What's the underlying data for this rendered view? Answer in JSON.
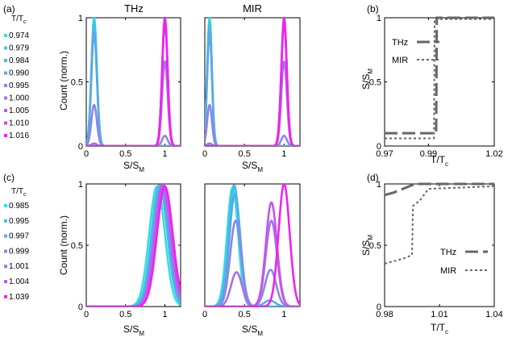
{
  "panel_labels": {
    "a": "(a)",
    "b": "(b)",
    "c": "(c)",
    "d": "(d)"
  },
  "common": {
    "ylabel_count": "Count (norm.)",
    "xlabel_main": "S/S",
    "xlabel_sub": "M",
    "ylabel_S_main": "S/S",
    "ylabel_S_sub": "M",
    "tt_main": "T/T",
    "tt_sub": "c"
  },
  "chart_data": [
    {
      "id": "a",
      "type": "line",
      "title": "THz",
      "xlabel": "S/S_M",
      "ylabel": "Count (norm.)",
      "xlim": [
        0,
        1.2
      ],
      "ylim": [
        0,
        1
      ],
      "xticks": [
        "0",
        "0.5",
        "1"
      ],
      "yticks": [
        "0",
        "0.5",
        "1"
      ],
      "legend_title": "T/T_c",
      "series": [
        {
          "name": "0.974",
          "color": "#33dfe0",
          "peaks": [
            {
              "mu": 0.1,
              "sigma": 0.035,
              "amp": 1.0
            }
          ]
        },
        {
          "name": "0.979",
          "color": "#3dcde3",
          "peaks": [
            {
              "mu": 0.1,
              "sigma": 0.035,
              "amp": 0.98
            }
          ]
        },
        {
          "name": "0.984",
          "color": "#47bbe5",
          "peaks": [
            {
              "mu": 0.1,
              "sigma": 0.035,
              "amp": 0.95
            }
          ]
        },
        {
          "name": "0.990",
          "color": "#5aa8e8",
          "peaks": [
            {
              "mu": 0.1,
              "sigma": 0.035,
              "amp": 0.88
            }
          ]
        },
        {
          "name": "0.995",
          "color": "#8a86ea",
          "peaks": [
            {
              "mu": 0.1,
              "sigma": 0.035,
              "amp": 0.32
            },
            {
              "mu": 1.0,
              "sigma": 0.035,
              "amp": 0.08
            }
          ]
        },
        {
          "name": "1.000",
          "color": "#a870ec",
          "peaks": [
            {
              "mu": 0.1,
              "sigma": 0.035,
              "amp": 0.02
            },
            {
              "mu": 1.0,
              "sigma": 0.035,
              "amp": 0.66
            }
          ]
        },
        {
          "name": "1.005",
          "color": "#c455ee",
          "peaks": [
            {
              "mu": 1.0,
              "sigma": 0.035,
              "amp": 0.96
            }
          ]
        },
        {
          "name": "1.010",
          "color": "#db3cf0",
          "peaks": [
            {
              "mu": 1.0,
              "sigma": 0.035,
              "amp": 0.98
            }
          ]
        },
        {
          "name": "1.016",
          "color": "#ef22f0",
          "peaks": [
            {
              "mu": 1.0,
              "sigma": 0.035,
              "amp": 1.0
            }
          ]
        }
      ]
    },
    {
      "id": "a-mir",
      "type": "line",
      "title": "MIR",
      "xlabel": "S/S_M",
      "xlim": [
        0,
        1.2
      ],
      "ylim": [
        0,
        1
      ],
      "xticks": [
        "0",
        "0.5",
        "1"
      ],
      "series": [
        {
          "name": "0.974",
          "color": "#33dfe0",
          "peaks": [
            {
              "mu": 0.06,
              "sigma": 0.03,
              "amp": 1.0
            }
          ]
        },
        {
          "name": "0.979",
          "color": "#3dcde3",
          "peaks": [
            {
              "mu": 0.06,
              "sigma": 0.03,
              "amp": 0.98
            }
          ]
        },
        {
          "name": "0.984",
          "color": "#47bbe5",
          "peaks": [
            {
              "mu": 0.06,
              "sigma": 0.03,
              "amp": 0.95
            }
          ]
        },
        {
          "name": "0.990",
          "color": "#5aa8e8",
          "peaks": [
            {
              "mu": 0.06,
              "sigma": 0.03,
              "amp": 0.88
            }
          ]
        },
        {
          "name": "0.995",
          "color": "#8a86ea",
          "peaks": [
            {
              "mu": 0.06,
              "sigma": 0.03,
              "amp": 0.32
            },
            {
              "mu": 1.0,
              "sigma": 0.035,
              "amp": 0.08
            }
          ]
        },
        {
          "name": "1.000",
          "color": "#a870ec",
          "peaks": [
            {
              "mu": 0.06,
              "sigma": 0.03,
              "amp": 0.02
            },
            {
              "mu": 1.0,
              "sigma": 0.035,
              "amp": 0.66
            }
          ]
        },
        {
          "name": "1.005",
          "color": "#c455ee",
          "peaks": [
            {
              "mu": 1.0,
              "sigma": 0.035,
              "amp": 0.96
            }
          ]
        },
        {
          "name": "1.010",
          "color": "#db3cf0",
          "peaks": [
            {
              "mu": 1.0,
              "sigma": 0.035,
              "amp": 0.98
            }
          ]
        },
        {
          "name": "1.016",
          "color": "#ef22f0",
          "peaks": [
            {
              "mu": 1.0,
              "sigma": 0.035,
              "amp": 1.0
            }
          ]
        }
      ]
    },
    {
      "id": "b",
      "type": "line",
      "xlabel": "T/T_c",
      "ylabel": "S/S_M",
      "xlim": [
        0.97,
        1.02
      ],
      "ylim": [
        0,
        1
      ],
      "xticks": [
        "0.97",
        "0.99",
        "1.02"
      ],
      "yticks": [
        "0",
        "0.5",
        "1"
      ],
      "series": [
        {
          "name": "THz",
          "color": "#666666",
          "dash": "16 6",
          "width": 3,
          "x": [
            0.97,
            0.974,
            0.979,
            0.984,
            0.99,
            0.9935,
            0.9938,
            0.995,
            1.0,
            1.005,
            1.01,
            1.016,
            1.02
          ],
          "y": [
            0.1,
            0.1,
            0.1,
            0.1,
            0.1,
            0.1,
            1.0,
            1.0,
            1.0,
            1.0,
            1.0,
            1.0,
            1.0
          ]
        },
        {
          "name": "MIR",
          "color": "#666666",
          "dash": "3 3",
          "width": 2,
          "x": [
            0.97,
            0.974,
            0.979,
            0.984,
            0.99,
            0.9925,
            0.9928,
            0.995,
            1.0,
            1.005,
            1.01,
            1.016,
            1.02
          ],
          "y": [
            0.06,
            0.06,
            0.06,
            0.06,
            0.06,
            0.06,
            0.99,
            0.99,
            0.99,
            0.99,
            0.99,
            0.99,
            0.99
          ]
        }
      ]
    },
    {
      "id": "c",
      "type": "line",
      "title": "THz",
      "xlabel": "S/S_M",
      "ylabel": "Count (norm.)",
      "xlim": [
        0,
        1.2
      ],
      "ylim": [
        0,
        1
      ],
      "xticks": [
        "0",
        "0.5",
        "1"
      ],
      "yticks": [
        "0",
        "0.5",
        "1"
      ],
      "legend_title": "T/T_c",
      "series": [
        {
          "name": "0.985",
          "color": "#33dfe0",
          "peaks": [
            {
              "mu": 0.9,
              "sigma": 0.1,
              "amp": 0.98
            }
          ]
        },
        {
          "name": "0.995",
          "color": "#47bbe5",
          "peaks": [
            {
              "mu": 0.93,
              "sigma": 0.1,
              "amp": 0.99
            }
          ]
        },
        {
          "name": "0.997",
          "color": "#5aa8e8",
          "peaks": [
            {
              "mu": 0.95,
              "sigma": 0.1,
              "amp": 0.98
            }
          ]
        },
        {
          "name": "0.999",
          "color": "#8a86ea",
          "peaks": [
            {
              "mu": 0.96,
              "sigma": 0.1,
              "amp": 0.97
            }
          ]
        },
        {
          "name": "1.001",
          "color": "#a870ec",
          "peaks": [
            {
              "mu": 0.97,
              "sigma": 0.1,
              "amp": 0.99
            }
          ]
        },
        {
          "name": "1.004",
          "color": "#c455ee",
          "peaks": [
            {
              "mu": 0.98,
              "sigma": 0.1,
              "amp": 1.0
            }
          ]
        },
        {
          "name": "1.039",
          "color": "#ef22f0",
          "peaks": [
            {
              "mu": 1.0,
              "sigma": 0.1,
              "amp": 0.98
            }
          ]
        }
      ]
    },
    {
      "id": "c-mir",
      "type": "line",
      "title": "MIR",
      "xlabel": "S/S_M",
      "xlim": [
        0,
        1.2
      ],
      "ylim": [
        0,
        1
      ],
      "xticks": [
        "0",
        "0.5",
        "1"
      ],
      "series": [
        {
          "name": "0.985",
          "color": "#33dfe0",
          "peaks": [
            {
              "mu": 0.35,
              "sigma": 0.07,
              "amp": 0.97
            }
          ]
        },
        {
          "name": "0.995",
          "color": "#47bbe5",
          "peaks": [
            {
              "mu": 0.37,
              "sigma": 0.07,
              "amp": 0.99
            }
          ]
        },
        {
          "name": "0.997",
          "color": "#5aa8e8",
          "peaks": [
            {
              "mu": 0.38,
              "sigma": 0.07,
              "amp": 0.92
            },
            {
              "mu": 0.82,
              "sigma": 0.07,
              "amp": 0.05
            }
          ]
        },
        {
          "name": "0.999",
          "color": "#8a86ea",
          "peaks": [
            {
              "mu": 0.39,
              "sigma": 0.07,
              "amp": 0.7
            },
            {
              "mu": 0.83,
              "sigma": 0.07,
              "amp": 0.3
            }
          ]
        },
        {
          "name": "1.001",
          "color": "#a870ec",
          "peaks": [
            {
              "mu": 0.4,
              "sigma": 0.07,
              "amp": 0.28
            },
            {
              "mu": 0.84,
              "sigma": 0.07,
              "amp": 0.7
            }
          ]
        },
        {
          "name": "1.004",
          "color": "#c455ee",
          "peaks": [
            {
              "mu": 0.84,
              "sigma": 0.07,
              "amp": 0.85
            }
          ]
        },
        {
          "name": "1.039",
          "color": "#ef22f0",
          "peaks": [
            {
              "mu": 1.0,
              "sigma": 0.07,
              "amp": 1.0
            }
          ]
        }
      ]
    },
    {
      "id": "d",
      "type": "line",
      "xlabel": "T/T_c",
      "ylabel": "S/S_M",
      "xlim": [
        0.98,
        1.04
      ],
      "ylim": [
        0,
        1
      ],
      "xticks": [
        "0.98",
        "1.01",
        "1.04"
      ],
      "yticks": [
        "0",
        "0.5",
        "1"
      ],
      "series": [
        {
          "name": "THz",
          "color": "#666666",
          "dash": "16 6",
          "width": 3,
          "x": [
            0.98,
            0.985,
            0.99,
            0.995,
            0.997,
            0.999,
            1.001,
            1.004,
            1.039,
            1.04
          ],
          "y": [
            0.91,
            0.93,
            0.96,
            0.99,
            0.995,
            1.0,
            1.0,
            1.0,
            1.0,
            1.0
          ]
        },
        {
          "name": "MIR",
          "color": "#666666",
          "dash": "3 3",
          "width": 2,
          "x": [
            0.98,
            0.985,
            0.99,
            0.995,
            0.9955,
            0.997,
            0.999,
            1.001,
            1.004,
            1.039,
            1.04
          ],
          "y": [
            0.35,
            0.37,
            0.39,
            0.42,
            0.82,
            0.84,
            0.86,
            0.9,
            0.96,
            0.98,
            0.99
          ]
        }
      ]
    }
  ]
}
